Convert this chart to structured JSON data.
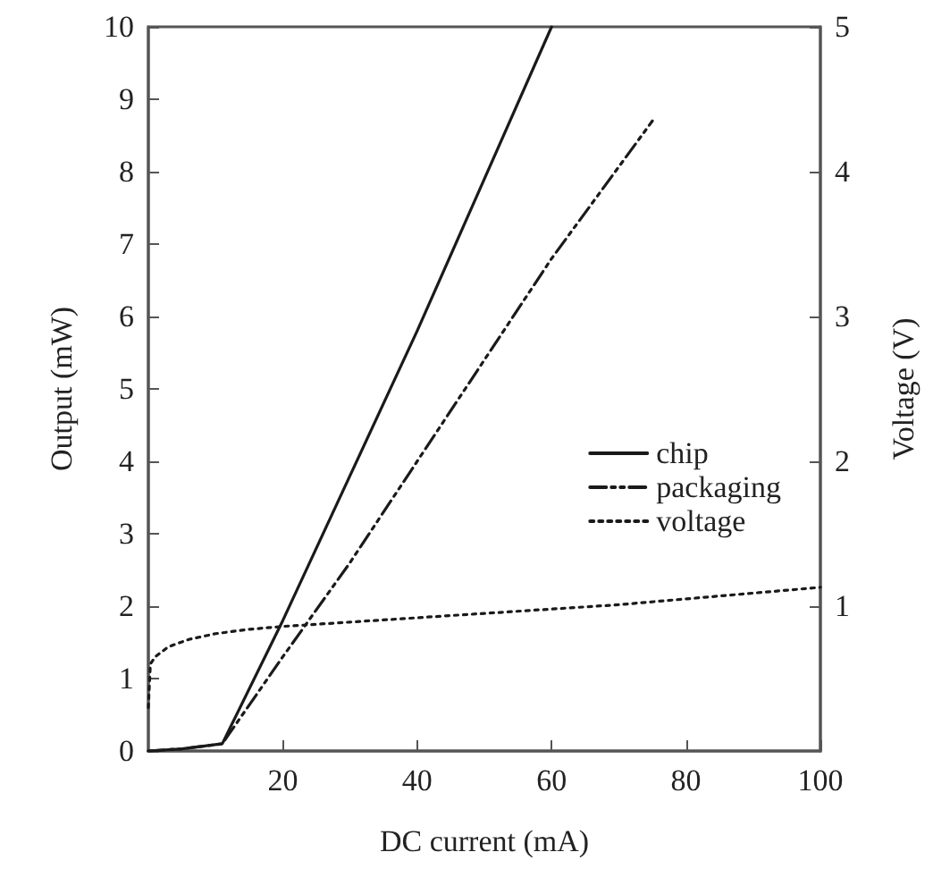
{
  "chart_data": {
    "type": "line",
    "xlabel": "DC current (mA)",
    "ylabel": "Output (mW)",
    "y2label": "Voltage (V)",
    "xlim": [
      0,
      100
    ],
    "xticks": [
      20,
      40,
      60,
      80,
      100
    ],
    "ylim": [
      0,
      10
    ],
    "yticks": [
      0,
      1,
      2,
      3,
      4,
      5,
      6,
      7,
      8,
      9,
      10
    ],
    "y2lim": [
      0,
      5
    ],
    "y2ticks": [
      1,
      2,
      3,
      4,
      5
    ],
    "legend": "right",
    "grid": false,
    "marker": "none",
    "series": [
      {
        "name": "chip",
        "color": "#1a1a1a",
        "line_style": "solid",
        "x": [
          0,
          5,
          11,
          20,
          30,
          40,
          50,
          60
        ],
        "values": [
          0,
          0.03,
          0.1,
          1.8,
          3.8,
          5.8,
          7.9,
          10
        ]
      },
      {
        "name": "packaging",
        "color": "#1a1a1a",
        "line_style": "dashed",
        "x": [
          0,
          5,
          11,
          20,
          30,
          40,
          50,
          60,
          75
        ],
        "values": [
          0,
          0.03,
          0.1,
          1.3,
          2.6,
          4,
          5.4,
          6.8,
          8.7
        ]
      },
      {
        "name": "voltage",
        "color": "#1a1a1a",
        "line_style": "dotted",
        "axis": "y2",
        "x": [
          0,
          0.3,
          1,
          3,
          6,
          10,
          15,
          20,
          30,
          40,
          50,
          60,
          70,
          80,
          90,
          100
        ],
        "values": [
          0.3,
          0.6,
          0.65,
          0.72,
          0.77,
          0.81,
          0.84,
          0.86,
          0.89,
          0.92,
          0.95,
          0.98,
          1.01,
          1.05,
          1.09,
          1.13
        ]
      }
    ]
  }
}
